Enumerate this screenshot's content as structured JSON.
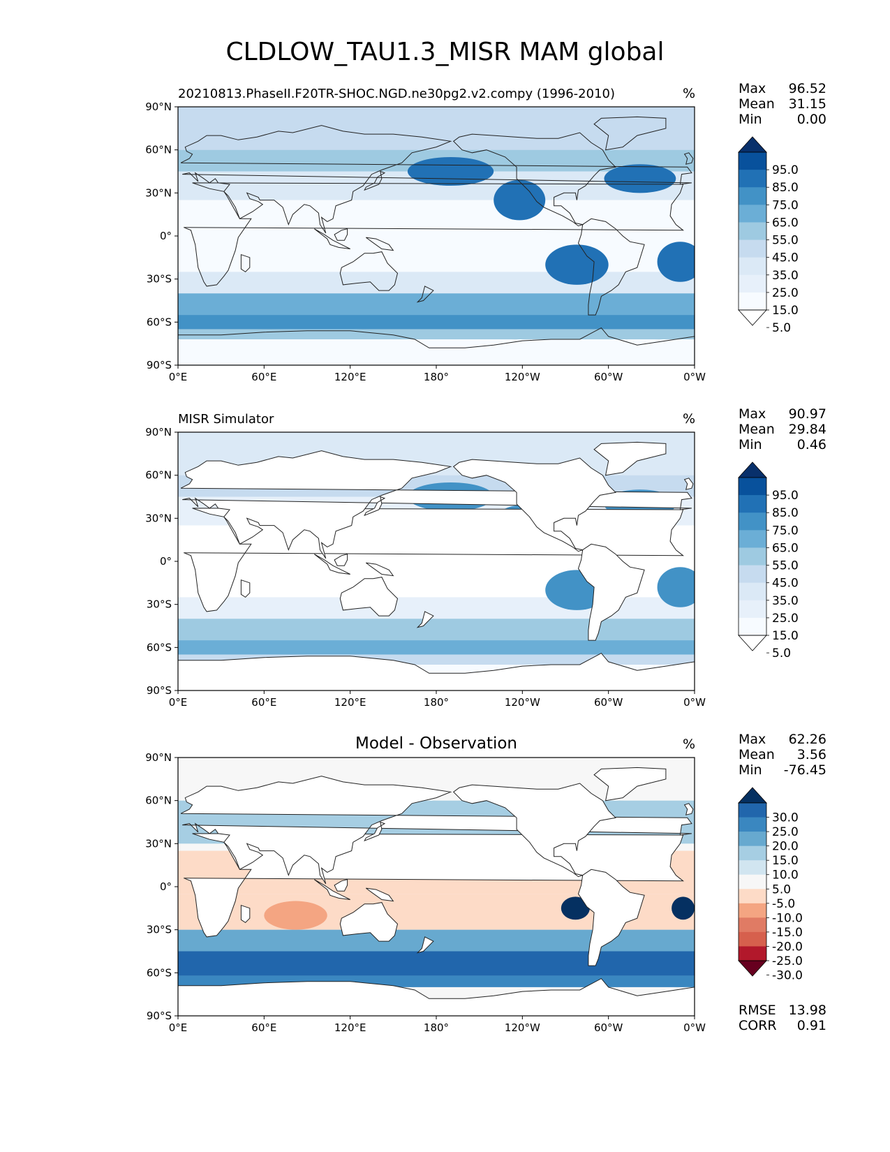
{
  "title": "CLDLOW_TAU1.3_MISR MAM global",
  "axis": {
    "lat_ticks": [
      "90°N",
      "60°N",
      "30°N",
      "0°",
      "30°S",
      "60°S",
      "90°S"
    ],
    "lon_ticks": [
      "0°E",
      "60°E",
      "120°E",
      "180°",
      "120°W",
      "60°W",
      "0°W"
    ]
  },
  "panels": [
    {
      "id": "test",
      "title": "20210813.PhaseII.F20TR-SHOC.NGD.ne30pg2.v2.compy (1996-2010)",
      "title_style": "left",
      "unit": "%",
      "stats": [
        {
          "label": "Max",
          "value": "96.52"
        },
        {
          "label": "Mean",
          "value": "31.15"
        },
        {
          "label": "Min",
          "value": "0.00"
        }
      ],
      "colorbar": {
        "labels": [
          "95.0",
          "85.0",
          "75.0",
          "65.0",
          "55.0",
          "45.0",
          "35.0",
          "25.0",
          "15.0",
          "5.0"
        ],
        "colors": [
          "#08306b",
          "#08519c",
          "#2171b5",
          "#4292c6",
          "#6baed6",
          "#9ecae1",
          "#c6dbef",
          "#dbe9f6",
          "#e7f0fa",
          "#f7fbff",
          "#ffffff"
        ]
      }
    },
    {
      "id": "reference",
      "title": "MISR Simulator",
      "title_style": "left",
      "unit": "%",
      "stats": [
        {
          "label": "Max",
          "value": "90.97"
        },
        {
          "label": "Mean",
          "value": "29.84"
        },
        {
          "label": "Min",
          "value": "0.46"
        }
      ],
      "colorbar": {
        "labels": [
          "95.0",
          "85.0",
          "75.0",
          "65.0",
          "55.0",
          "45.0",
          "35.0",
          "25.0",
          "15.0",
          "5.0"
        ],
        "colors": [
          "#08306b",
          "#08519c",
          "#2171b5",
          "#4292c6",
          "#6baed6",
          "#9ecae1",
          "#c6dbef",
          "#dbe9f6",
          "#e7f0fa",
          "#f7fbff",
          "#ffffff"
        ]
      }
    },
    {
      "id": "difference",
      "title": "Model - Observation",
      "title_style": "center",
      "unit": "%",
      "stats": [
        {
          "label": "Max",
          "value": "62.26"
        },
        {
          "label": "Mean",
          "value": "3.56"
        },
        {
          "label": "Min",
          "value": "-76.45"
        }
      ],
      "colorbar": {
        "labels": [
          "30.0",
          "25.0",
          "20.0",
          "15.0",
          "10.0",
          "5.0",
          "-5.0",
          "-10.0",
          "-15.0",
          "-20.0",
          "-25.0",
          "-30.0"
        ],
        "colors": [
          "#053061",
          "#2166ac",
          "#3a87c0",
          "#67a9cf",
          "#a6cee3",
          "#d1e5f0",
          "#f7f7f7",
          "#fddbc7",
          "#f4a582",
          "#e07b64",
          "#d6604d",
          "#b2182b",
          "#67001f"
        ]
      }
    }
  ],
  "metrics": [
    {
      "label": "RMSE",
      "value": "13.98"
    },
    {
      "label": "CORR",
      "value": "0.91"
    }
  ]
}
